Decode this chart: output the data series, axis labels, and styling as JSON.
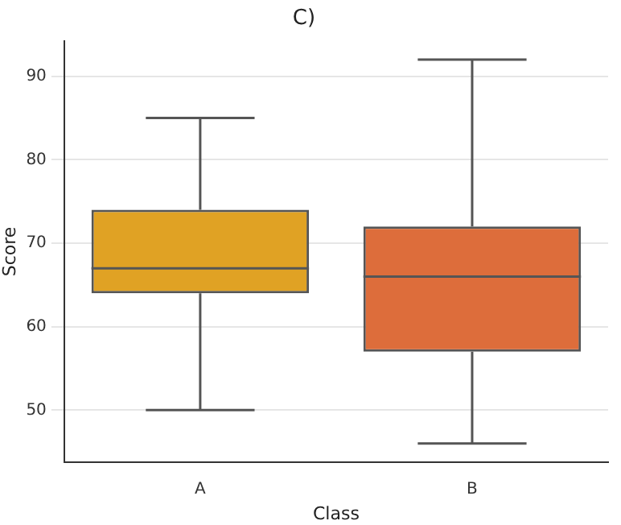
{
  "chart_data": {
    "type": "box",
    "title": "C)",
    "xlabel": "Class",
    "ylabel": "Score",
    "categories": [
      "A",
      "B"
    ],
    "colors": [
      "#e0a224",
      "#dd6d3b"
    ],
    "boxes": [
      {
        "low": 50,
        "q1": 64,
        "median": 67,
        "q3": 74,
        "high": 85
      },
      {
        "low": 46,
        "q1": 57,
        "median": 66,
        "q3": 72,
        "high": 92
      }
    ],
    "ylim": [
      43.8,
      94.2
    ],
    "yticks": [
      50,
      60,
      70,
      80,
      90
    ],
    "grid": "y"
  }
}
